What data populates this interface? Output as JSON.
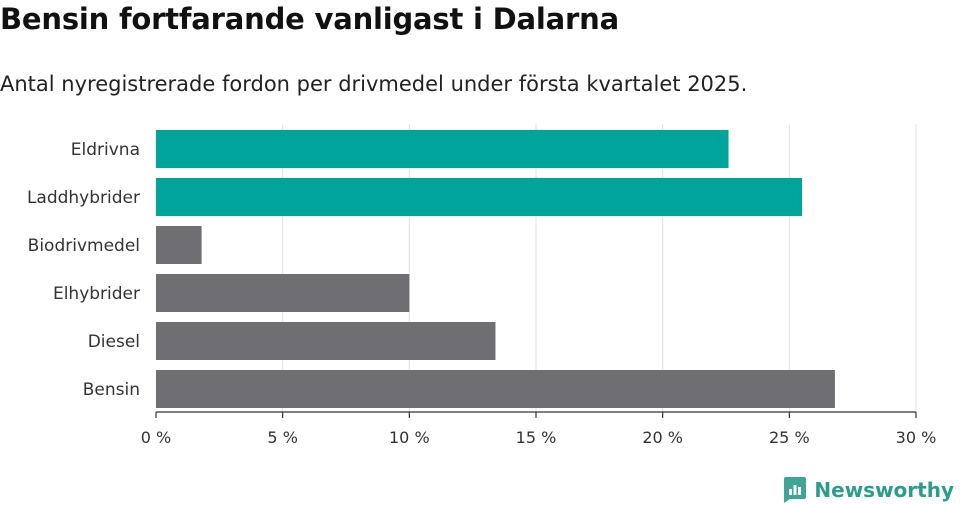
{
  "title": "Bensin fortfarande vanligast i Dalarna",
  "subtitle": "Antal nyregistrerade fordon per drivmedel under första kvartalet 2025.",
  "brand": {
    "name": "Newsworthy",
    "icon": "newsworthy-logo-icon"
  },
  "colors": {
    "highlight": "#00a49a",
    "default": "#6e6e73",
    "grid": "#e0e0e0",
    "axis": "#333333"
  },
  "chart_data": {
    "type": "bar",
    "orientation": "horizontal",
    "categories": [
      "Eldrivna",
      "Laddhybrider",
      "Biodrivmedel",
      "Elhybrider",
      "Diesel",
      "Bensin"
    ],
    "values": [
      22.6,
      25.5,
      1.8,
      10.0,
      13.4,
      26.8
    ],
    "highlighted": [
      true,
      true,
      false,
      false,
      false,
      false
    ],
    "xlim": [
      0,
      30
    ],
    "xticks": [
      0,
      5,
      10,
      15,
      20,
      25,
      30
    ],
    "xtick_labels": [
      "0 %",
      "5 %",
      "10 %",
      "15 %",
      "20 %",
      "25 %",
      "30 %"
    ],
    "grid": true,
    "title": "Bensin fortfarande vanligast i Dalarna",
    "xlabel": "",
    "ylabel": ""
  }
}
